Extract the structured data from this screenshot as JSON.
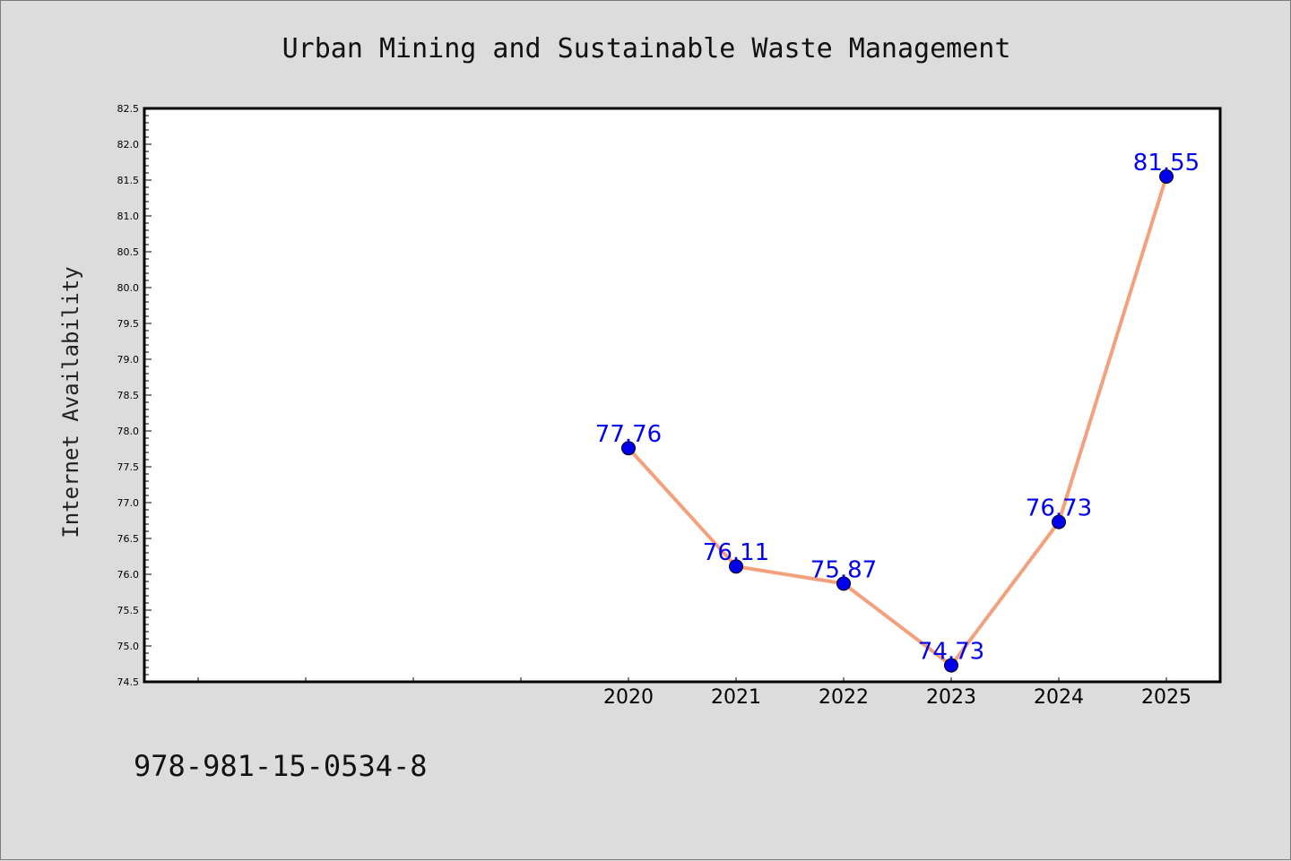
{
  "chart_data": {
    "type": "line",
    "title": "Urban Mining and Sustainable Waste Management",
    "xlabel": "",
    "ylabel": "Internet Availability",
    "categories": [
      "2020",
      "2021",
      "2022",
      "2023",
      "2024",
      "2025"
    ],
    "values": [
      77.76,
      76.11,
      75.87,
      74.73,
      76.73,
      81.55
    ],
    "data_labels": [
      "77.76",
      "76.11",
      "75.87",
      "74.73",
      "76.73",
      "81.55"
    ],
    "ylim": [
      74.5,
      82.5
    ],
    "yticks": [
      "74.5",
      "75.0",
      "75.5",
      "76.0",
      "76.5",
      "77.0",
      "77.5",
      "78.0",
      "78.5",
      "79.0",
      "79.5",
      "80.0",
      "80.5",
      "81.0",
      "81.5",
      "82.0",
      "82.5"
    ],
    "grid": false,
    "legend": "none",
    "line_color": "#f4a07c",
    "marker_color": "#0000ee",
    "label_color": "#0000ee"
  },
  "footer": {
    "isbn": "978-981-15-0534-8"
  }
}
